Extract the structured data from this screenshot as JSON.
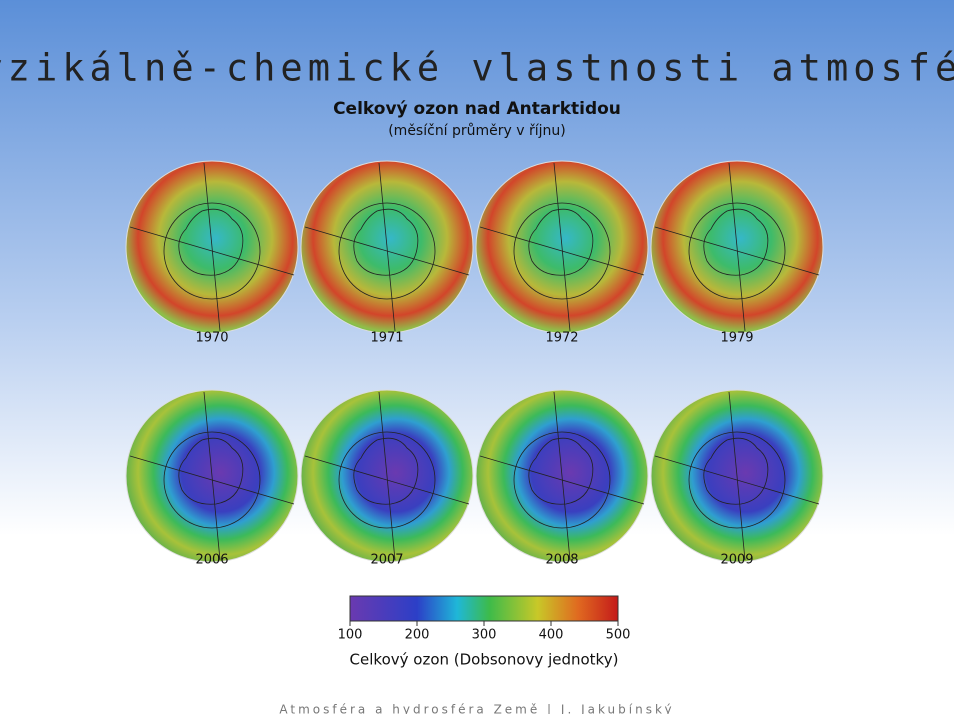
{
  "header": {
    "title": "Fyzikálně-chemické vlastnosti atmosféry"
  },
  "figure": {
    "title": "Celkový ozon nad Antarktidou",
    "subtitle": "(měsíční průměry v říjnu)",
    "panels": [
      {
        "year": "1970"
      },
      {
        "year": "1971"
      },
      {
        "year": "1972"
      },
      {
        "year": "1979"
      },
      {
        "year": "2006"
      },
      {
        "year": "2007"
      },
      {
        "year": "2008"
      },
      {
        "year": "2009"
      }
    ],
    "colorbar": {
      "range": [
        100,
        500
      ],
      "ticks": [
        100,
        200,
        300,
        400,
        500
      ],
      "label": "Celkový ozon (Dobsonovy jednotky)"
    }
  },
  "footer": "Atmosféra a hydrosféra Země | J. Jakubínský"
}
